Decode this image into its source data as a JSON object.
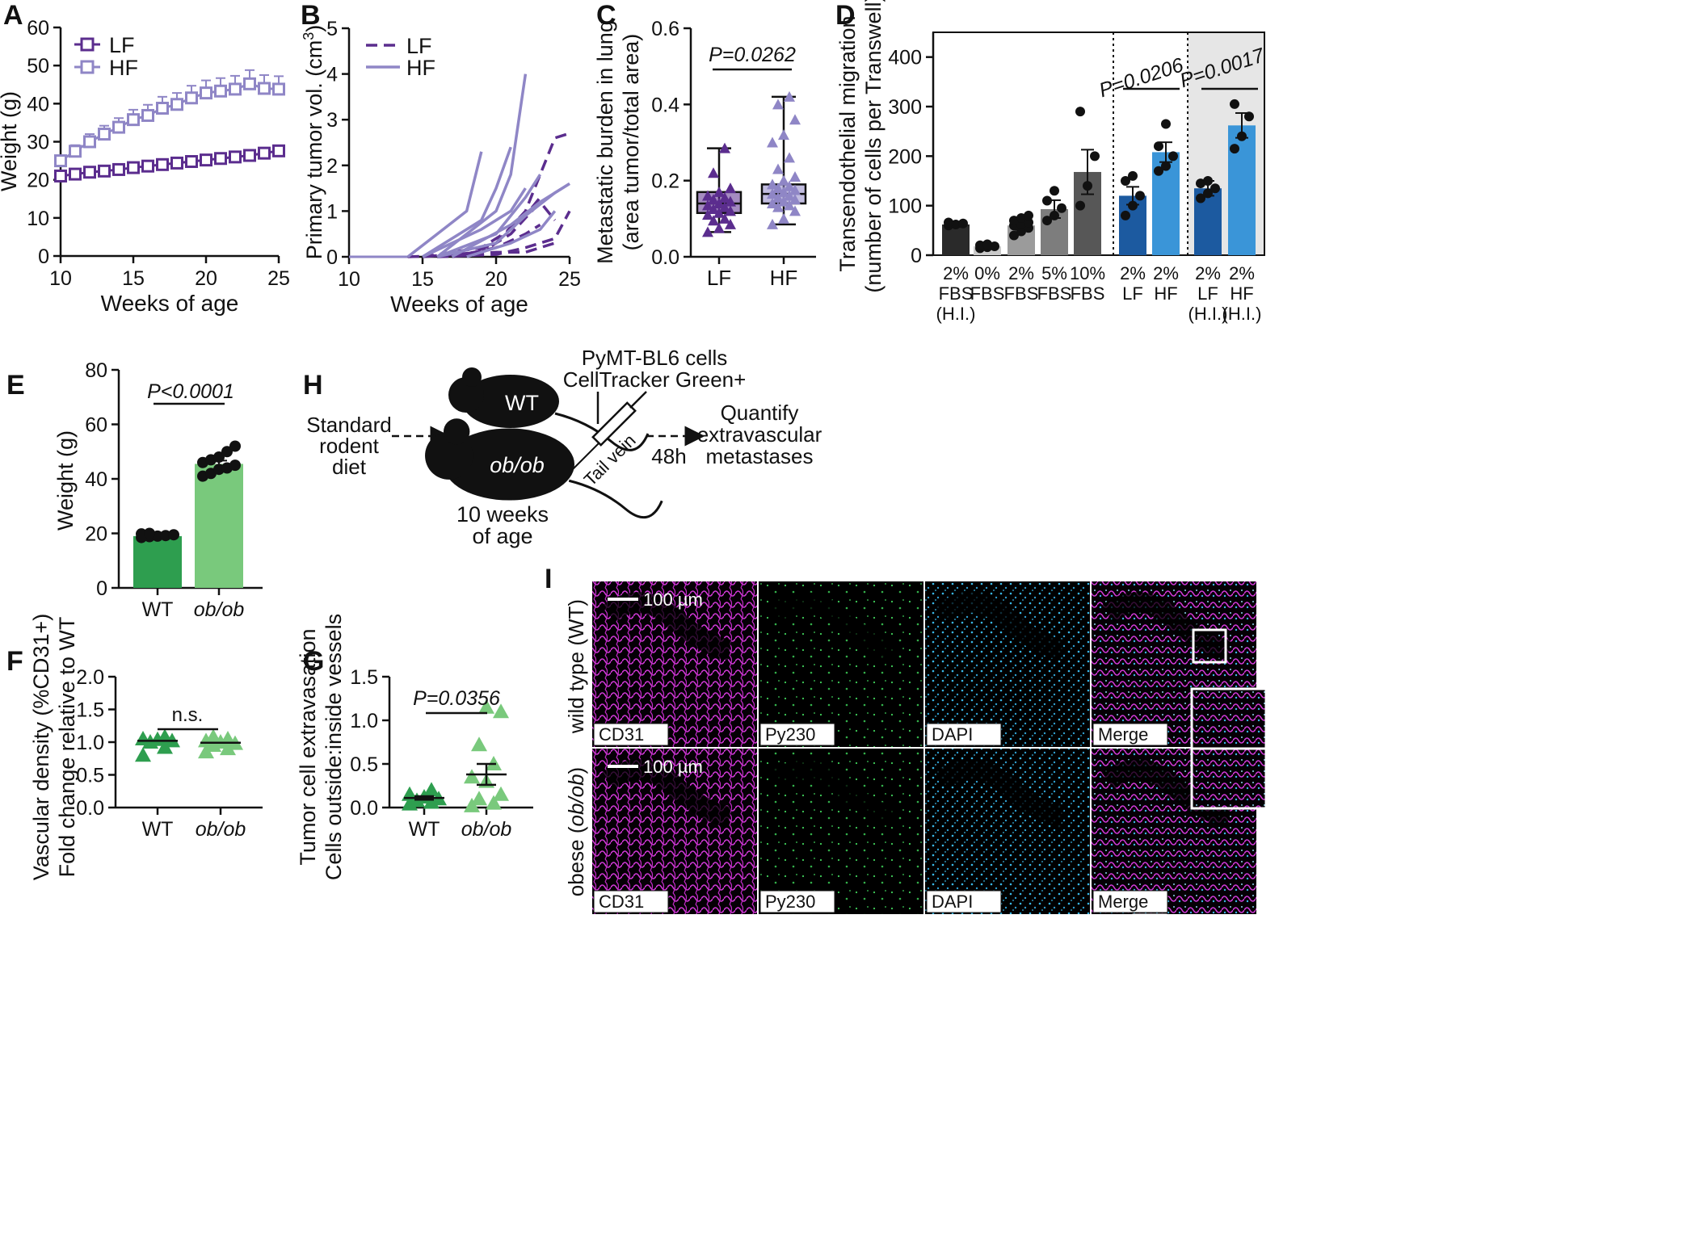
{
  "colors": {
    "lf_dark": "#5b2d8e",
    "hf_light": "#8f86c6",
    "green_dark": "#2e9e4f",
    "green_light": "#79c97c",
    "blue_dark": "#1c5aa0",
    "blue_light": "#3a95d8",
    "magenta": "#d23ad8",
    "green_fluor": "#3fd05a",
    "cyan": "#3ab7e6"
  },
  "chart_data": [
    {
      "panel": "A",
      "type": "line",
      "xlabel": "Weeks of age",
      "ylabel": "Weight (g)",
      "xlim": [
        10,
        25
      ],
      "ylim": [
        0,
        60
      ],
      "xticks": [
        "10",
        "15",
        "20",
        "25"
      ],
      "yticks": [
        "0",
        "10",
        "20",
        "30",
        "40",
        "50",
        "60"
      ],
      "x": [
        10,
        11,
        12,
        13,
        14,
        15,
        16,
        17,
        18,
        19,
        20,
        21,
        22,
        23,
        24,
        25
      ],
      "series": [
        {
          "name": "LF",
          "values": [
            21,
            21.5,
            22,
            22.3,
            22.7,
            23.2,
            23.6,
            24,
            24.4,
            24.8,
            25.2,
            25.6,
            26,
            26.4,
            27,
            27.6
          ],
          "err": [
            0.8,
            0.8,
            0.8,
            0.9,
            0.9,
            1,
            1,
            1,
            1.1,
            1.1,
            1.1,
            1.2,
            1.2,
            1.3,
            1.3,
            1.4
          ]
        },
        {
          "name": "HF",
          "values": [
            25,
            27.5,
            30,
            32,
            33.8,
            35.8,
            36.9,
            38.8,
            39.8,
            41.5,
            42.8,
            43.3,
            43.8,
            45.2,
            44,
            43.8
          ],
          "err": [
            1.2,
            1.6,
            2,
            2.2,
            2.4,
            2.6,
            2.8,
            3,
            3,
            3.2,
            3.3,
            3.4,
            3.5,
            3.6,
            3.5,
            3.4
          ]
        }
      ]
    },
    {
      "panel": "B",
      "type": "line",
      "xlabel": "Weeks of age",
      "ylabel": "Primary tumor vol. (cm",
      "ylabel_sup": "3",
      "ylabel_end": ")",
      "xlim": [
        10,
        25
      ],
      "ylim": [
        0,
        5
      ],
      "xticks": [
        "10",
        "15",
        "20",
        "25"
      ],
      "yticks": [
        "0",
        "1",
        "2",
        "3",
        "4",
        "5"
      ],
      "series": [
        {
          "name": "LF",
          "style": "dashed",
          "curves": [
            [
              [
                14,
                0
              ],
              [
                18,
                0.05
              ],
              [
                20,
                0.3
              ],
              [
                22,
                1
              ],
              [
                23,
                1.8
              ],
              [
                24,
                2.6
              ],
              [
                25,
                2.7
              ]
            ],
            [
              [
                15,
                0
              ],
              [
                19,
                0.1
              ],
              [
                21,
                0.5
              ],
              [
                23,
                1.2
              ],
              [
                24,
                0.8
              ]
            ],
            [
              [
                16,
                0
              ],
              [
                20,
                0.05
              ],
              [
                22,
                0.2
              ],
              [
                24,
                0.4
              ],
              [
                25,
                1
              ]
            ],
            [
              [
                15,
                0
              ],
              [
                19,
                0.2
              ],
              [
                21,
                0.6
              ],
              [
                22,
                0.9
              ],
              [
                23,
                1.3
              ]
            ],
            [
              [
                16,
                0
              ],
              [
                20,
                0.1
              ],
              [
                22,
                0.1
              ],
              [
                23,
                0.2
              ],
              [
                24,
                0.3
              ]
            ],
            [
              [
                17,
                0
              ],
              [
                20,
                0.2
              ],
              [
                22,
                0.5
              ],
              [
                23,
                0.7
              ]
            ]
          ]
        },
        {
          "name": "HF",
          "style": "solid",
          "curves": [
            [
              [
                16,
                0
              ],
              [
                20,
                1
              ],
              [
                21,
                1.8
              ],
              [
                22,
                4
              ]
            ],
            [
              [
                14,
                0
              ],
              [
                16,
                0.5
              ],
              [
                18,
                1
              ],
              [
                19,
                2.3
              ]
            ],
            [
              [
                15,
                0
              ],
              [
                19,
                0.8
              ],
              [
                20,
                1.5
              ],
              [
                21,
                2.4
              ]
            ],
            [
              [
                16,
                0
              ],
              [
                20,
                0.5
              ],
              [
                22,
                1.3
              ],
              [
                23,
                1.8
              ]
            ],
            [
              [
                17,
                0
              ],
              [
                21,
                0.7
              ],
              [
                23,
                1.2
              ],
              [
                25,
                1.6
              ]
            ],
            [
              [
                16,
                0
              ],
              [
                20,
                0.3
              ],
              [
                22,
                0.9
              ],
              [
                24,
                1.4
              ],
              [
                25,
                1.6
              ]
            ],
            [
              [
                15,
                0
              ],
              [
                19,
                0.6
              ],
              [
                21,
                1
              ],
              [
                22,
                1.5
              ]
            ],
            [
              [
                18,
                0
              ],
              [
                21,
                0.3
              ],
              [
                23,
                0.6
              ],
              [
                24,
                1
              ]
            ]
          ]
        }
      ]
    },
    {
      "panel": "C",
      "type": "box",
      "ylabel": "Metastatic burden in lung",
      "ylabel2": "(area tumor/total area)",
      "ylim": [
        0,
        0.6
      ],
      "yticks": [
        "0.0",
        "0.2",
        "0.4",
        "0.6"
      ],
      "categories": [
        "LF",
        "HF"
      ],
      "stat": "P=0.0262",
      "boxes": [
        {
          "min": 0.065,
          "q1": 0.115,
          "median": 0.14,
          "q3": 0.17,
          "max": 0.285,
          "points": [
            0.065,
            0.075,
            0.085,
            0.095,
            0.1,
            0.11,
            0.115,
            0.12,
            0.125,
            0.13,
            0.135,
            0.14,
            0.145,
            0.15,
            0.155,
            0.16,
            0.17,
            0.18,
            0.22,
            0.285
          ]
        },
        {
          "min": 0.085,
          "q1": 0.14,
          "median": 0.165,
          "q3": 0.19,
          "max": 0.42,
          "points": [
            0.085,
            0.1,
            0.12,
            0.13,
            0.135,
            0.14,
            0.145,
            0.15,
            0.155,
            0.16,
            0.165,
            0.17,
            0.175,
            0.18,
            0.185,
            0.19,
            0.2,
            0.21,
            0.23,
            0.26,
            0.3,
            0.32,
            0.36,
            0.4,
            0.42
          ]
        }
      ]
    },
    {
      "panel": "D",
      "type": "bar",
      "ylabel": "Transendothelial migration",
      "ylabel2": "(number of cells per Transwell)",
      "ylim": [
        0,
        450
      ],
      "yticks": [
        "0",
        "100",
        "200",
        "300",
        "400"
      ],
      "categories": [
        [
          "2%",
          "FBS",
          "(H.I.)"
        ],
        [
          "0%",
          "FBS"
        ],
        [
          "2%",
          "FBS"
        ],
        [
          "5%",
          "FBS"
        ],
        [
          "10%",
          "FBS"
        ],
        [
          "2%",
          "LF"
        ],
        [
          "2%",
          "HF"
        ],
        [
          "2%",
          "LF",
          "(H.I.)"
        ],
        [
          "2%",
          "HF",
          "(H.I.)"
        ]
      ],
      "values": [
        62,
        18,
        60,
        93,
        168,
        120,
        208,
        135,
        262
      ],
      "err": [
        5,
        3,
        9,
        18,
        45,
        18,
        20,
        15,
        25
      ],
      "points": [
        [
          60,
          62,
          64,
          66
        ],
        [
          14,
          16,
          18,
          20,
          22
        ],
        [
          40,
          48,
          55,
          60,
          62,
          66,
          70,
          75,
          80
        ],
        [
          70,
          80,
          95,
          110,
          130
        ],
        [
          100,
          140,
          200,
          290
        ],
        [
          80,
          100,
          120,
          150,
          160
        ],
        [
          170,
          180,
          200,
          220,
          265
        ],
        [
          115,
          125,
          135,
          145,
          150
        ],
        [
          215,
          240,
          280,
          305
        ]
      ],
      "stats": [
        "P=0.0206",
        "P=0.0017"
      ]
    },
    {
      "panel": "E",
      "type": "bar",
      "ylabel": "Weight (g)",
      "ylim": [
        0,
        80
      ],
      "yticks": [
        "0",
        "20",
        "40",
        "60",
        "80"
      ],
      "categories": [
        "WT",
        "ob/ob"
      ],
      "values": [
        19,
        45.5
      ],
      "err": [
        0.3,
        1.2
      ],
      "points": [
        [
          18.5,
          18.8,
          19,
          19.2,
          19.5,
          19.8,
          20
        ],
        [
          41,
          42,
          43.5,
          44,
          45,
          46,
          47,
          48,
          50,
          52
        ]
      ],
      "stat": "P<0.0001"
    },
    {
      "panel": "G",
      "type": "scatter",
      "ylabel": "Vascular density (%CD31+)",
      "ylabel2": "Fold change relative to WT",
      "ylim": [
        0,
        2.0
      ],
      "yticks": [
        "0.0",
        "0.5",
        "1.0",
        "1.5",
        "2.0"
      ],
      "categories": [
        "WT",
        "ob/ob"
      ],
      "means": [
        1.02,
        0.99
      ],
      "sem": [
        0.04,
        0.03
      ],
      "points": [
        [
          0.8,
          0.92,
          1.0,
          1.02,
          1.04,
          1.05,
          1.08
        ],
        [
          0.85,
          0.9,
          0.95,
          0.98,
          1.0,
          1.02,
          1.05,
          1.08
        ]
      ],
      "stat": "n.s."
    },
    {
      "panel": "H",
      "type": "scatter",
      "ylabel": "Tumor cell extravasation",
      "ylabel2": "Cells outside:inside vessels",
      "ylim": [
        0,
        1.5
      ],
      "yticks": [
        "0.0",
        "0.5",
        "1.0",
        "1.5"
      ],
      "categories": [
        "WT",
        "ob/ob"
      ],
      "means": [
        0.11,
        0.38
      ],
      "sem": [
        0.02,
        0.12
      ],
      "points": [
        [
          0.04,
          0.06,
          0.08,
          0.1,
          0.12,
          0.15,
          0.2
        ],
        [
          0.02,
          0.05,
          0.1,
          0.15,
          0.3,
          0.35,
          0.5,
          0.72,
          1.1,
          1.15
        ]
      ],
      "stat": "P=0.0356"
    }
  ],
  "panel_f": {
    "diet": [
      "Standard",
      "rodent",
      "diet"
    ],
    "mouse_wt": "WT",
    "mouse_ob": "ob/ob",
    "age": [
      "10 weeks",
      "of age"
    ],
    "cells": [
      "PyMT-BL6 cells",
      "CellTracker Green+"
    ],
    "route": "Tail vein",
    "time": "48h",
    "readout": [
      "Quantify",
      "extravascular",
      "metastases"
    ]
  },
  "panel_i": {
    "row_labels": {
      "wt_a": "wild type (WT)",
      "ob_a": "obese (",
      "ob_b": "ob/ob",
      "ob_c": ")"
    },
    "scale_bar": "100 µm",
    "channels": [
      "CD31",
      "Py230",
      "DAPI",
      "Merge"
    ]
  },
  "letters": [
    "A",
    "B",
    "C",
    "D",
    "E",
    "F",
    "G",
    "H",
    "I"
  ]
}
